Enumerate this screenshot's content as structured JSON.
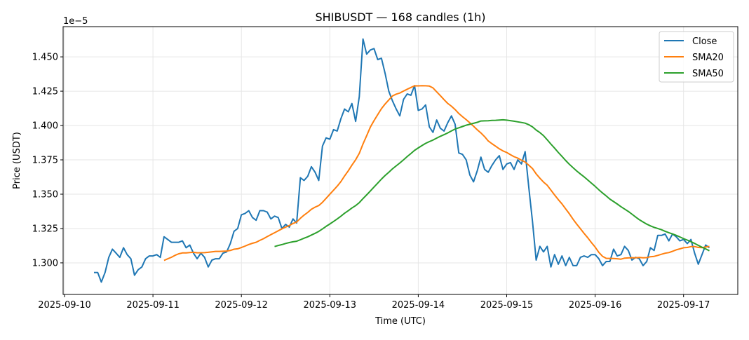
{
  "chart_data": {
    "type": "line",
    "title": "SHIBUSDT — 168 candles (1h)",
    "xlabel": "Time (UTC)",
    "ylabel": "Price (USDT)",
    "y_offset_label": "1e−5",
    "start_time": "2025-09-10T08:00:00Z",
    "interval_hours": 1,
    "x_ticks": [
      "2025-09-10",
      "2025-09-11",
      "2025-09-12",
      "2025-09-13",
      "2025-09-14",
      "2025-09-15",
      "2025-09-16",
      "2025-09-17"
    ],
    "y_ticks": [
      "1.300",
      "1.325",
      "1.350",
      "1.375",
      "1.400",
      "1.425",
      "1.450"
    ],
    "ylim": [
      1.277,
      1.472
    ],
    "grid": true,
    "legend_position": "top-right",
    "colors": {
      "Close": "#1f77b4",
      "SMA20": "#ff7f0e",
      "SMA50": "#2ca02c"
    },
    "series": [
      {
        "name": "Close",
        "values": [
          1.293,
          1.293,
          1.286,
          1.293,
          1.304,
          1.31,
          1.307,
          1.304,
          1.311,
          1.306,
          1.303,
          1.291,
          1.295,
          1.297,
          1.303,
          1.305,
          1.305,
          1.306,
          1.304,
          1.319,
          1.317,
          1.315,
          1.315,
          1.315,
          1.316,
          1.311,
          1.313,
          1.307,
          1.303,
          1.307,
          1.304,
          1.297,
          1.302,
          1.303,
          1.303,
          1.307,
          1.308,
          1.314,
          1.323,
          1.325,
          1.335,
          1.336,
          1.338,
          1.333,
          1.331,
          1.338,
          1.338,
          1.337,
          1.332,
          1.334,
          1.333,
          1.325,
          1.328,
          1.326,
          1.332,
          1.329,
          1.362,
          1.36,
          1.363,
          1.37,
          1.366,
          1.36,
          1.385,
          1.391,
          1.39,
          1.397,
          1.396,
          1.405,
          1.412,
          1.41,
          1.416,
          1.403,
          1.421,
          1.463,
          1.452,
          1.455,
          1.456,
          1.448,
          1.449,
          1.438,
          1.425,
          1.418,
          1.412,
          1.407,
          1.419,
          1.423,
          1.422,
          1.429,
          1.411,
          1.412,
          1.415,
          1.399,
          1.395,
          1.404,
          1.398,
          1.396,
          1.402,
          1.407,
          1.401,
          1.38,
          1.379,
          1.375,
          1.364,
          1.359,
          1.367,
          1.377,
          1.368,
          1.366,
          1.371,
          1.375,
          1.378,
          1.368,
          1.372,
          1.373,
          1.368,
          1.375,
          1.372,
          1.381,
          1.355,
          1.33,
          1.302,
          1.312,
          1.308,
          1.312,
          1.297,
          1.306,
          1.299,
          1.305,
          1.298,
          1.304,
          1.298,
          1.298,
          1.304,
          1.305,
          1.304,
          1.306,
          1.306,
          1.303,
          1.298,
          1.301,
          1.301,
          1.31,
          1.305,
          1.306,
          1.312,
          1.309,
          1.302,
          1.304,
          1.303,
          1.298,
          1.301,
          1.311,
          1.309,
          1.32,
          1.32,
          1.321,
          1.316,
          1.321,
          1.319,
          1.316,
          1.317,
          1.314,
          1.317,
          1.307,
          1.299,
          1.306,
          1.313,
          1.311
        ]
      },
      {
        "name": "SMA20",
        "window": 20
      },
      {
        "name": "SMA50",
        "window": 50
      }
    ]
  }
}
